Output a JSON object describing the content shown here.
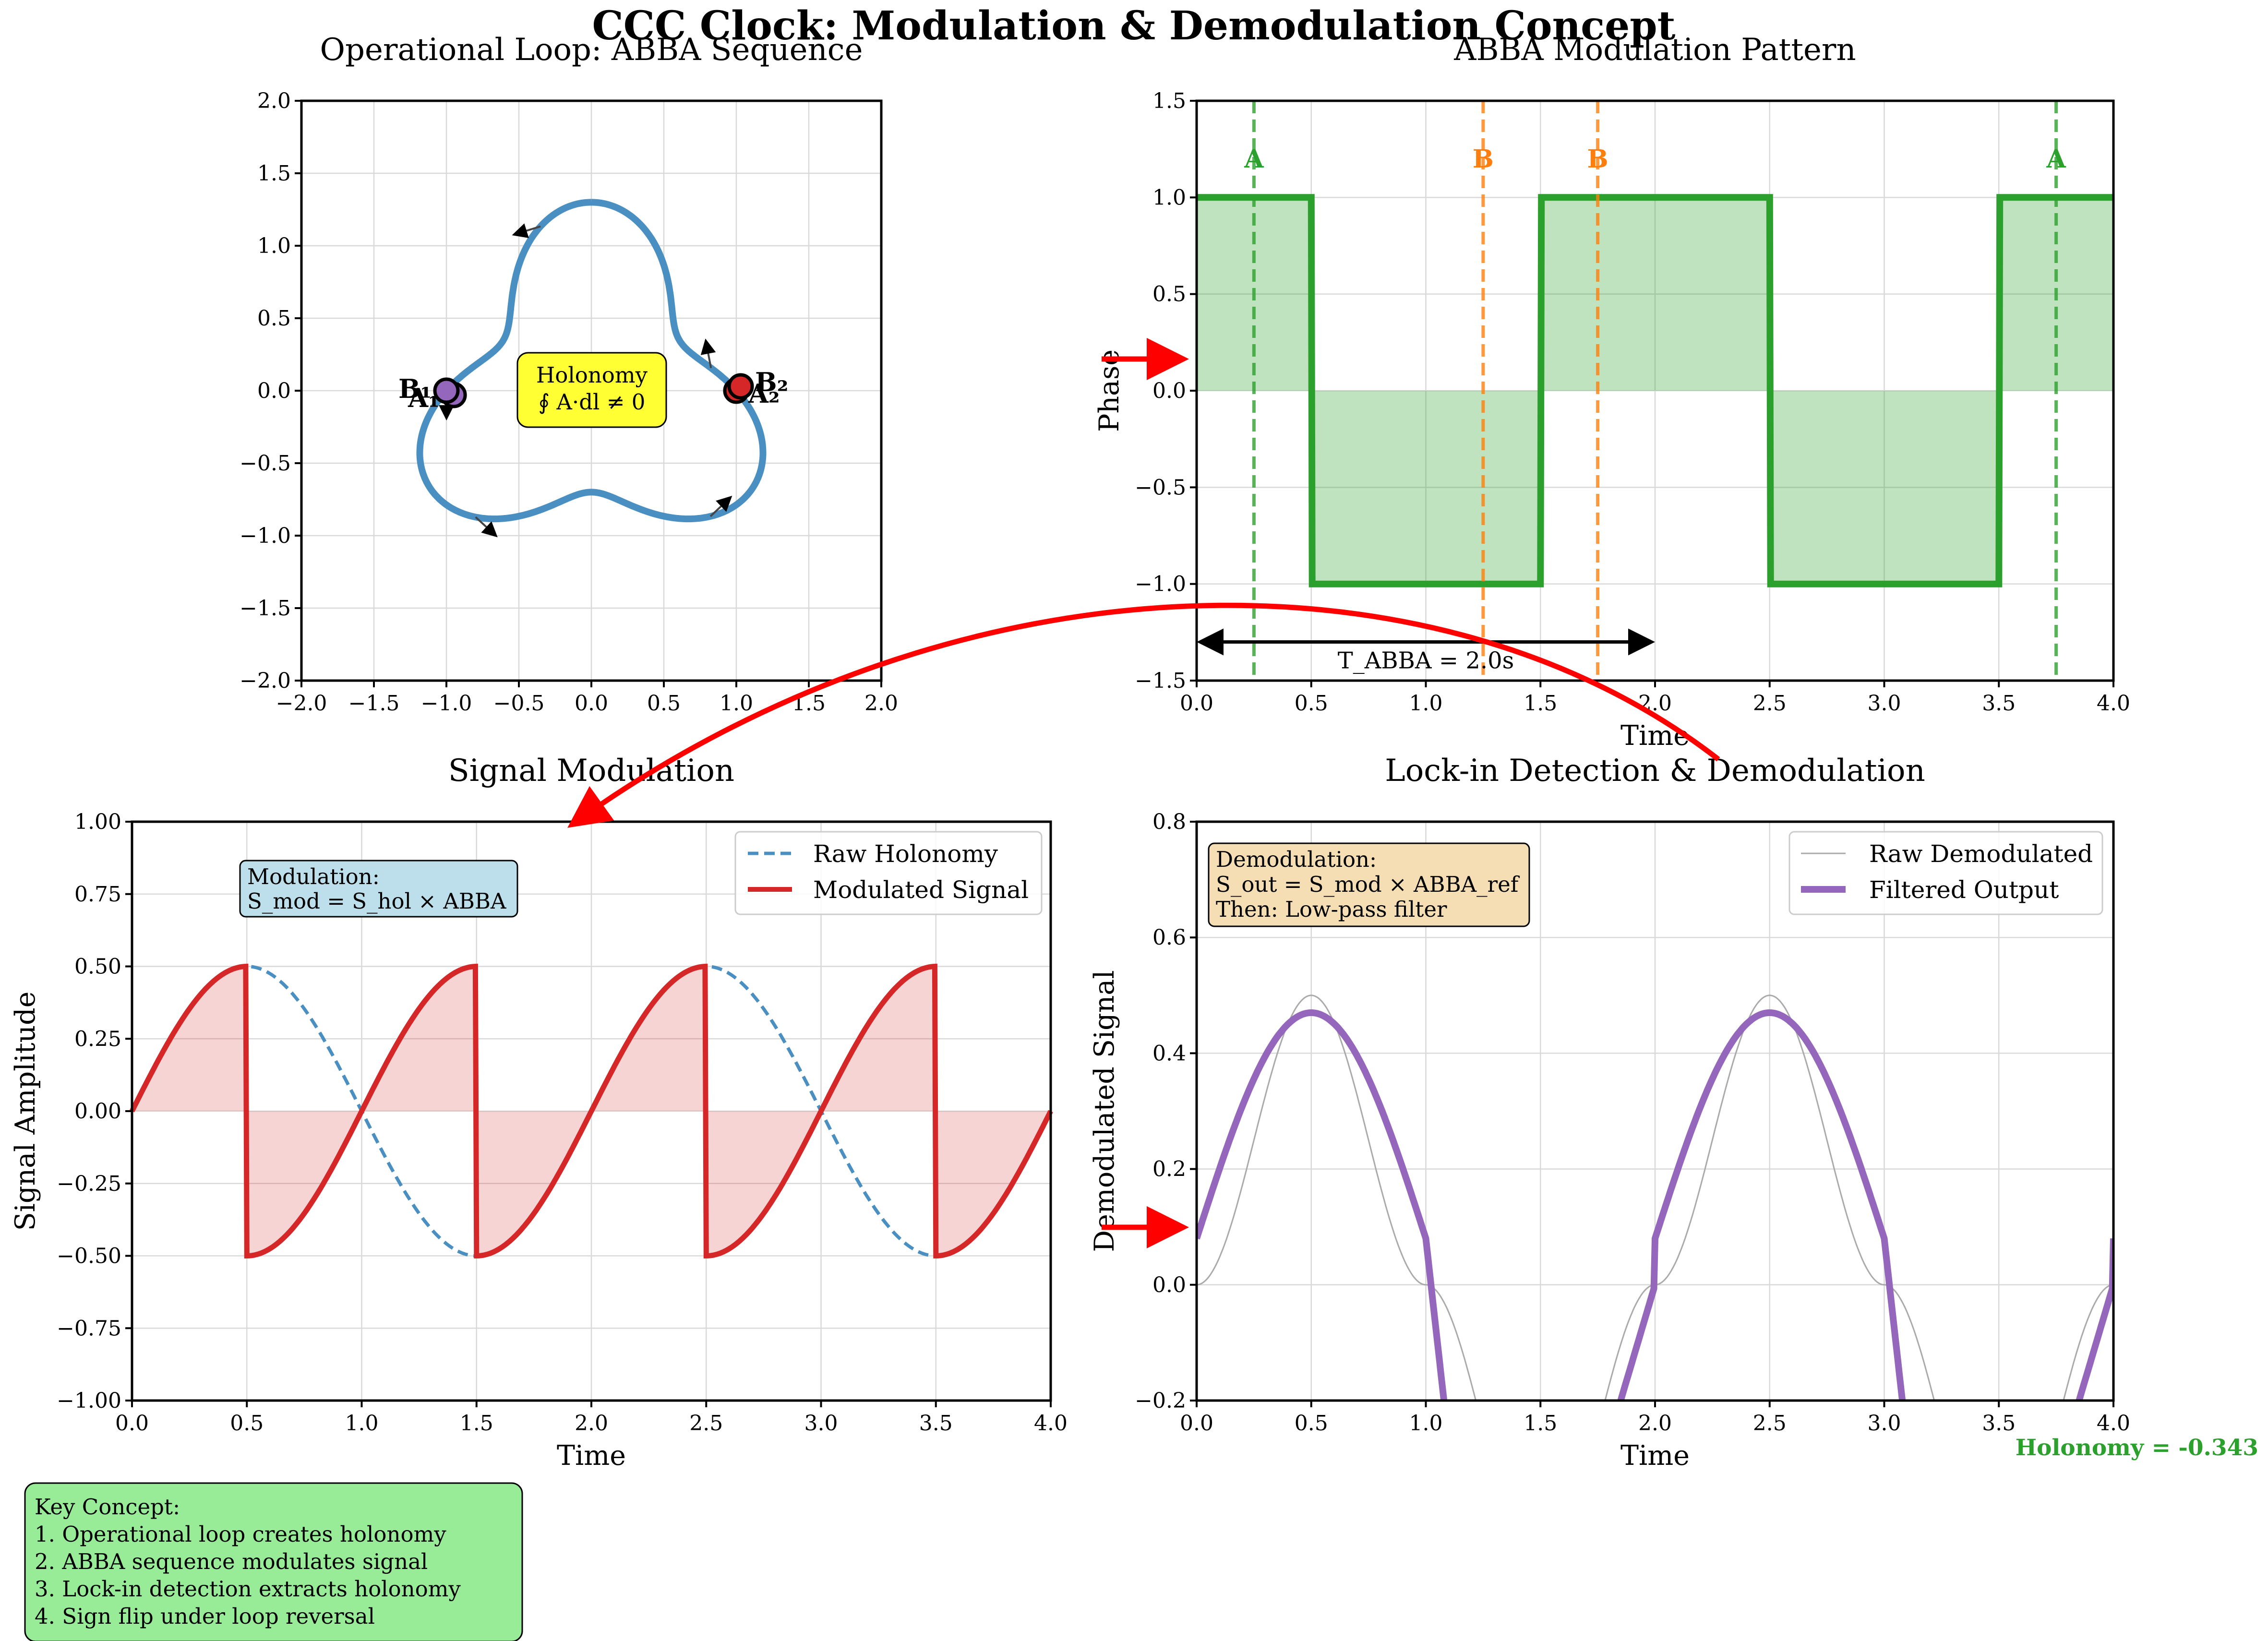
{
  "figure": {
    "title": "CCC Clock: Modulation & Demodulation Concept",
    "key_concept": [
      "Key Concept:",
      "1. Operational loop creates holonomy",
      "2. ABBA sequence modulates signal",
      "3. Lock-in detection extracts holonomy",
      "4. Sign flip under loop reversal"
    ],
    "holonomy_readout": "Holonomy = -0.343",
    "colors": {
      "blue": "#4a8fc2",
      "green": "#2ca02c",
      "orange": "#ff7f0e",
      "red": "#d62728",
      "purple": "#9467bd",
      "arrow": "#ff0000",
      "yellow_box": "#ffff33",
      "lightgreen_box": "#98ec98",
      "lightblue_box": "#bcdfeb",
      "wheat_box": "#f5deb3"
    }
  },
  "chart_data": [
    {
      "id": "loop",
      "type": "line",
      "title": "Operational Loop: ABBA Sequence",
      "xlim": [
        -2,
        2
      ],
      "ylim": [
        -2,
        2
      ],
      "xticks": [
        "−2.0",
        "−1.5",
        "−1.0",
        "−0.5",
        "0.0",
        "0.5",
        "1.0",
        "1.5",
        "2.0"
      ],
      "yticks": [
        "−2.0",
        "−1.5",
        "−1.0",
        "−0.5",
        "0.0",
        "0.5",
        "1.0",
        "1.5",
        "2.0"
      ],
      "curve": {
        "equation": "r = 1 + 0.3*cos(3*theta)",
        "direction_arrow_thetas": [
          0.3,
          1.57,
          2.4,
          3.9,
          4.9
        ]
      },
      "points": [
        {
          "label": "A₁",
          "x": -0.95,
          "y": -0.03,
          "color": "#9467bd"
        },
        {
          "label": "B₁",
          "x": -1.0,
          "y": 0.0,
          "color": "#9467bd"
        },
        {
          "label": "A₂",
          "x": 1.0,
          "y": 0.0,
          "color": "#d62728"
        },
        {
          "label": "B₂",
          "x": 1.03,
          "y": 0.03,
          "color": "#d62728"
        }
      ],
      "annotation": {
        "line1": "Holonomy",
        "line2": "∮ A·dl ≠ 0"
      }
    },
    {
      "id": "abba",
      "type": "line",
      "title": "ABBA Modulation Pattern",
      "xlabel": "Time",
      "ylabel": "Phase",
      "xlim": [
        0,
        4
      ],
      "ylim": [
        -1.5,
        1.5
      ],
      "xticks": [
        "0.0",
        "0.5",
        "1.0",
        "1.5",
        "2.0",
        "2.5",
        "3.0",
        "3.5",
        "4.0"
      ],
      "yticks": [
        "−1.5",
        "−1.0",
        "−0.5",
        "0.0",
        "0.5",
        "1.0",
        "1.5"
      ],
      "step": {
        "x": [
          0,
          0.5,
          0.5,
          1.5,
          1.5,
          2.5,
          2.5,
          3.5,
          3.5,
          4.0
        ],
        "y": [
          1,
          1,
          -1,
          -1,
          1,
          1,
          -1,
          -1,
          1,
          1
        ]
      },
      "markers": [
        {
          "label": "A",
          "x": 0.25,
          "color": "#2ca02c"
        },
        {
          "label": "B",
          "x": 1.25,
          "color": "#ff7f0e"
        },
        {
          "label": "B",
          "x": 1.75,
          "color": "#ff7f0e"
        },
        {
          "label": "A",
          "x": 3.75,
          "color": "#2ca02c"
        }
      ],
      "period": {
        "label": "T_ABBA = 2.0s",
        "x0": 0.0,
        "x1": 2.0,
        "y": -1.3
      }
    },
    {
      "id": "modulation",
      "type": "line",
      "title": "Signal Modulation",
      "xlabel": "Time",
      "ylabel": "Signal Amplitude",
      "xlim": [
        0,
        4
      ],
      "ylim": [
        -1.0,
        1.0
      ],
      "xticks": [
        "0.0",
        "0.5",
        "1.0",
        "1.5",
        "2.0",
        "2.5",
        "3.0",
        "3.5",
        "4.0"
      ],
      "yticks": [
        "−1.00",
        "−0.75",
        "−0.50",
        "−0.25",
        "0.00",
        "0.25",
        "0.50",
        "0.75",
        "1.00"
      ],
      "series": [
        {
          "name": "Raw Holonomy",
          "equation": "0.5*sin(pi*t)",
          "style": "dashed",
          "color": "#4a8fc2"
        },
        {
          "name": "Modulated Signal",
          "equation": "0.5*sin(pi*t)*ABBA(t)",
          "style": "solid",
          "color": "#d62728"
        }
      ],
      "box": {
        "line1": "Modulation:",
        "line2": "S_mod = S_hol × ABBA"
      }
    },
    {
      "id": "demod",
      "type": "line",
      "title": "Lock-in Detection & Demodulation",
      "xlabel": "Time",
      "ylabel": "Demodulated Signal",
      "xlim": [
        0,
        4
      ],
      "ylim": [
        -0.2,
        0.8
      ],
      "xticks": [
        "0.0",
        "0.5",
        "1.0",
        "1.5",
        "2.0",
        "2.5",
        "3.0",
        "3.5",
        "4.0"
      ],
      "yticks": [
        "−0.2",
        "0.0",
        "0.2",
        "0.4",
        "0.6",
        "0.8"
      ],
      "series": [
        {
          "name": "Raw Demodulated",
          "equation": "0.5*sin(pi*t)^2*sign(sin(pi*t))",
          "color": "#aaaaaa"
        },
        {
          "name": "Filtered Output",
          "equation": "low-pass of raw demodulated",
          "color": "#9467bd"
        }
      ],
      "box": {
        "line1": "Demodulation:",
        "line2": "S_out = S_mod × ABBA_ref",
        "line3": "Then: Low-pass filter"
      }
    }
  ]
}
